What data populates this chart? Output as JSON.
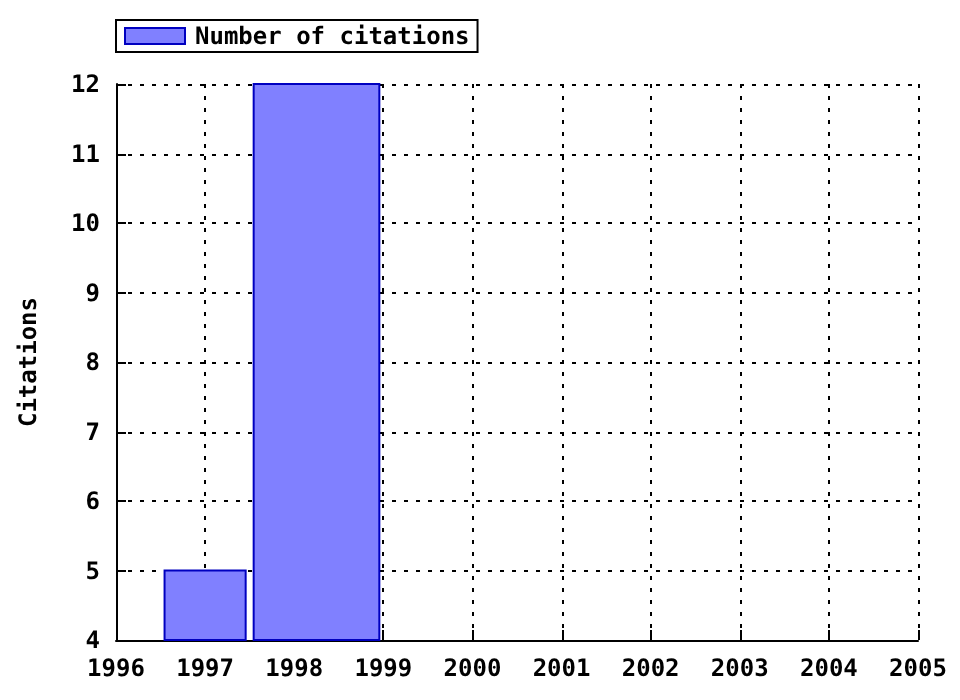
{
  "chart_data": {
    "type": "histogram",
    "ylabel": "Citations",
    "bins": [
      1996.5,
      1997.5,
      1999
    ],
    "series": [
      {
        "name": "Number of citations",
        "color": "#8080ff",
        "values": [
          5,
          12
        ]
      }
    ],
    "xlim": [
      1996,
      2005
    ],
    "xticks": [
      1996,
      1997,
      1998,
      1999,
      2000,
      2001,
      2002,
      2003,
      2004,
      2005
    ],
    "ylim": [
      4,
      12
    ],
    "yticks": [
      4,
      5,
      6,
      7,
      8,
      9,
      10,
      11,
      12
    ],
    "grid": true,
    "legend": "top left"
  }
}
